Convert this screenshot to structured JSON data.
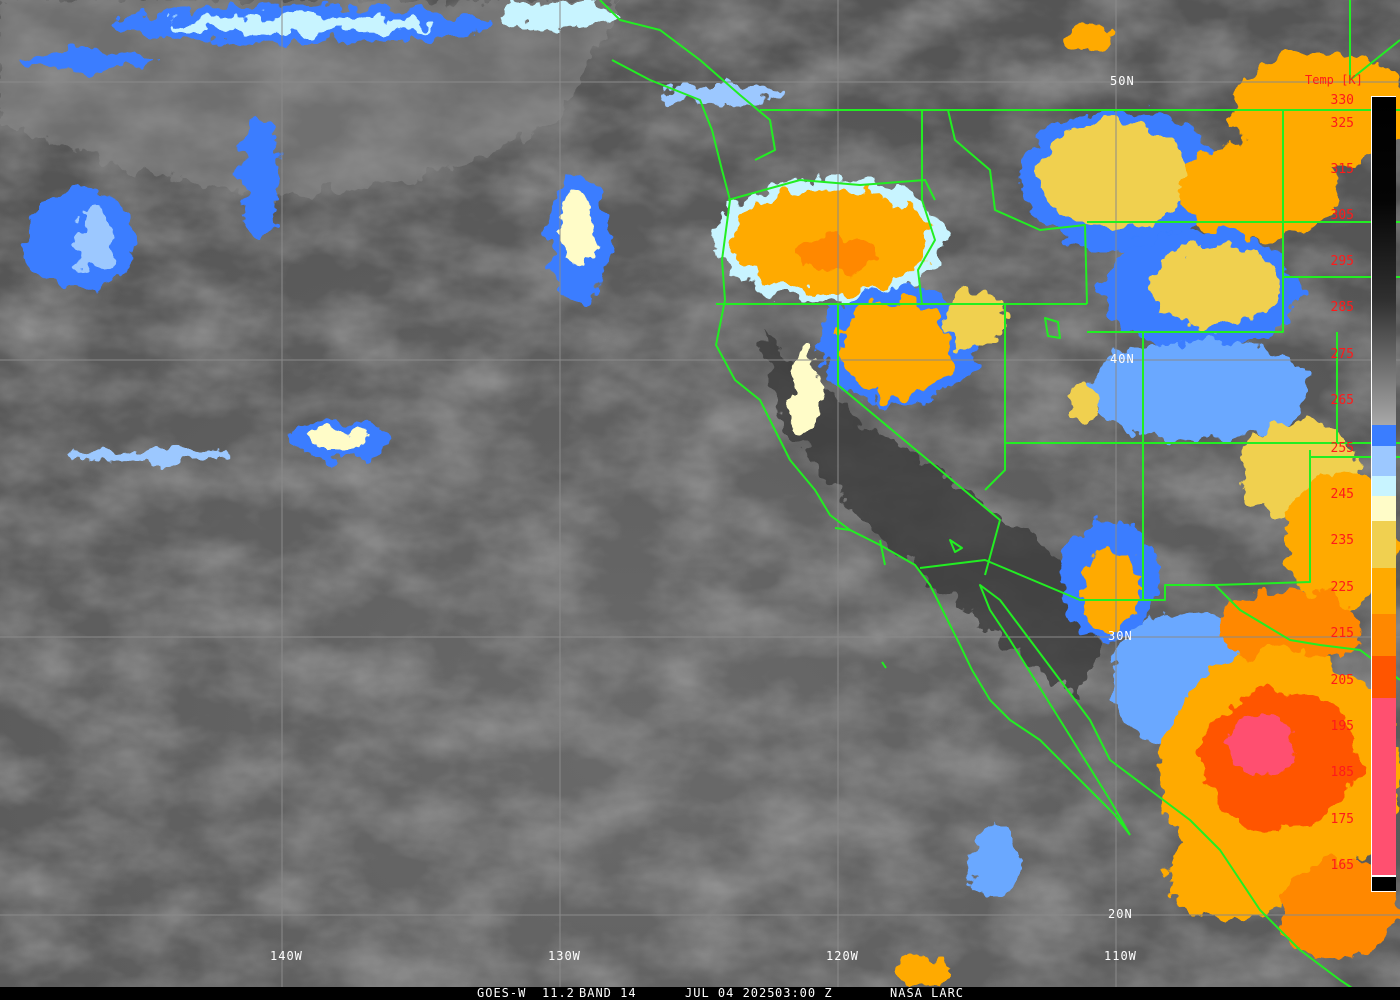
{
  "image": {
    "satellite": "GOES-W",
    "channel": "11.2",
    "band": "BAND 14",
    "date": "JUL 04 2025",
    "time": "03:00 Z",
    "credit": "NASA LARC"
  },
  "longitude_labels": [
    "140W",
    "130W",
    "120W",
    "110W"
  ],
  "latitude_labels": [
    "50N",
    "40N",
    "30N",
    "20N"
  ],
  "colorbar": {
    "title": "Temp [K]",
    "labels": [
      "330",
      "325",
      "315",
      "305",
      "295",
      "285",
      "275",
      "265",
      "255",
      "245",
      "235",
      "225",
      "215",
      "205",
      "195",
      "185",
      "175",
      "165"
    ],
    "colors": {
      "cold_blue": "#3a7dff",
      "mid_blue": "#6aa8ff",
      "light_blue": "#9cc8ff",
      "pale_cyan": "#c8f4ff",
      "pale_yellow": "#fffcc8",
      "yellow": "#f0d050",
      "amber": "#ffaa00",
      "orange": "#ff8800",
      "red_orange": "#ff5500",
      "pink": "#ff5070"
    }
  },
  "overlay_color": "#22ee22"
}
